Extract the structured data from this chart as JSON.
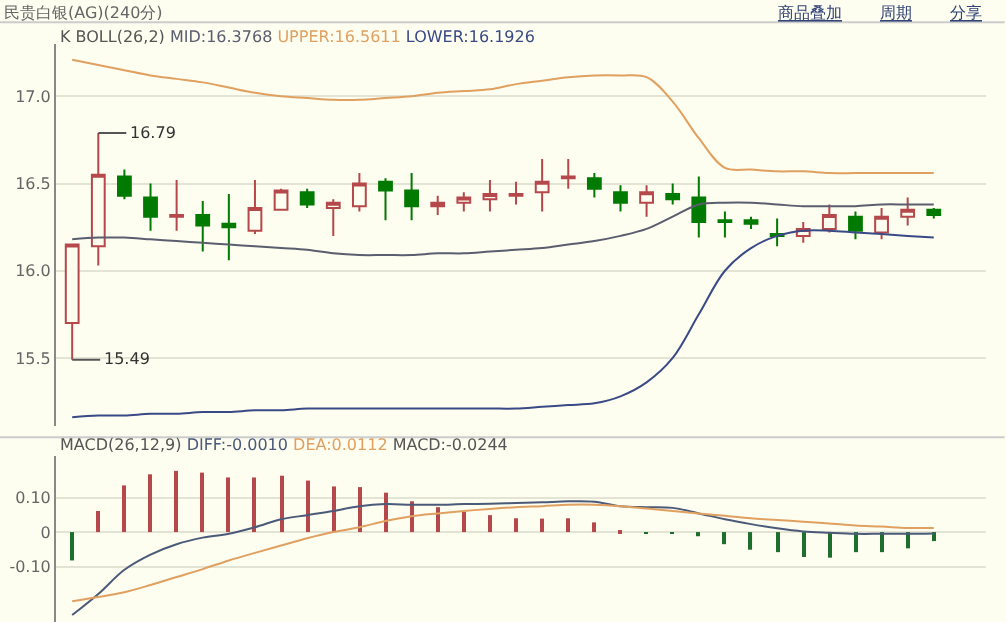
{
  "chart_data": [
    {
      "type": "candlestick",
      "title": "民贵白银(AG)(240分)",
      "subtitle": "K BOLL(26,2)",
      "annotations": [
        "16.79",
        "15.49",
        "商品叠加",
        "周期",
        "分享"
      ],
      "categories": [
        null,
        null,
        null,
        null,
        null,
        null,
        null,
        null,
        null,
        null,
        null,
        null,
        null,
        null,
        null,
        null,
        null,
        null,
        null,
        null,
        null,
        null,
        null,
        null,
        null,
        null,
        null,
        null,
        null,
        null,
        null,
        null,
        null,
        null
      ],
      "ohlc": [
        [
          15.7,
          16.15,
          15.49,
          16.15
        ],
        [
          16.14,
          16.79,
          16.03,
          16.55
        ],
        [
          16.54,
          16.58,
          16.41,
          16.43
        ],
        [
          16.42,
          16.5,
          16.23,
          16.31
        ],
        [
          16.31,
          16.52,
          16.23,
          16.32
        ],
        [
          16.32,
          16.4,
          16.11,
          16.26
        ],
        [
          16.27,
          16.44,
          16.06,
          16.25
        ],
        [
          16.23,
          16.52,
          16.21,
          16.36
        ],
        [
          16.35,
          16.47,
          16.35,
          16.46
        ],
        [
          16.45,
          16.47,
          16.36,
          16.38
        ],
        [
          16.36,
          16.41,
          16.2,
          16.39
        ],
        [
          16.37,
          16.56,
          16.34,
          16.5
        ],
        [
          16.51,
          16.53,
          16.29,
          16.46
        ],
        [
          16.46,
          16.56,
          16.29,
          16.37
        ],
        [
          16.37,
          16.43,
          16.32,
          16.39
        ],
        [
          16.39,
          16.45,
          16.34,
          16.42
        ],
        [
          16.41,
          16.52,
          16.34,
          16.44
        ],
        [
          16.43,
          16.51,
          16.38,
          16.44
        ],
        [
          16.45,
          16.64,
          16.34,
          16.51
        ],
        [
          16.53,
          16.64,
          16.47,
          16.54
        ],
        [
          16.53,
          16.56,
          16.42,
          16.47
        ],
        [
          16.45,
          16.49,
          16.34,
          16.39
        ],
        [
          16.39,
          16.49,
          16.31,
          16.45
        ],
        [
          16.44,
          16.5,
          16.38,
          16.41
        ],
        [
          16.42,
          16.54,
          16.19,
          16.28
        ],
        [
          16.29,
          16.34,
          16.19,
          16.28
        ],
        [
          16.29,
          16.31,
          16.24,
          16.27
        ],
        [
          16.21,
          16.3,
          16.14,
          16.2
        ],
        [
          16.2,
          16.28,
          16.16,
          16.24
        ],
        [
          16.24,
          16.38,
          16.22,
          16.32
        ],
        [
          16.31,
          16.34,
          16.18,
          16.23
        ],
        [
          16.22,
          16.36,
          16.18,
          16.31
        ],
        [
          16.31,
          16.42,
          16.26,
          16.35
        ],
        [
          16.35,
          16.36,
          16.3,
          16.32
        ]
      ],
      "series": [
        {
          "name": "MID:16.3768",
          "type": "line",
          "color": "#5a5e6e",
          "values": [
            16.18,
            16.19,
            16.19,
            16.18,
            16.17,
            16.16,
            16.15,
            16.14,
            16.13,
            16.12,
            16.1,
            16.09,
            16.09,
            16.09,
            16.1,
            16.1,
            16.11,
            16.12,
            16.13,
            16.15,
            16.17,
            16.2,
            16.24,
            16.31,
            16.38,
            16.39,
            16.39,
            16.38,
            16.37,
            16.37,
            16.37,
            16.38,
            16.38,
            16.38
          ]
        },
        {
          "name": "UPPER:16.5611",
          "type": "line",
          "color": "#e0a060",
          "values": [
            17.21,
            17.18,
            17.15,
            17.12,
            17.1,
            17.08,
            17.05,
            17.02,
            17.0,
            16.99,
            16.98,
            16.98,
            16.99,
            17.0,
            17.02,
            17.03,
            17.04,
            17.07,
            17.09,
            17.11,
            17.12,
            17.12,
            17.11,
            16.97,
            16.76,
            16.59,
            16.58,
            16.57,
            16.57,
            16.56,
            16.56,
            16.56,
            16.56,
            16.56
          ]
        },
        {
          "name": "LOWER:16.1926",
          "type": "line",
          "color": "#3a4a86",
          "values": [
            15.16,
            15.17,
            15.17,
            15.18,
            15.18,
            15.19,
            15.19,
            15.2,
            15.2,
            15.21,
            15.21,
            15.21,
            15.21,
            15.21,
            15.21,
            15.21,
            15.21,
            15.21,
            15.22,
            15.23,
            15.24,
            15.28,
            15.36,
            15.5,
            15.75,
            16.0,
            16.13,
            16.2,
            16.23,
            16.23,
            16.22,
            16.21,
            16.2,
            16.19
          ]
        }
      ],
      "ylim": [
        15.11,
        17.3
      ],
      "yticks": [
        {
          "value": 15.5,
          "label": "15.5"
        },
        {
          "value": 16.0,
          "label": "16.0"
        },
        {
          "value": 16.5,
          "label": "16.5"
        },
        {
          "value": 17.0,
          "label": "17.0"
        }
      ],
      "grid": "y",
      "tick_labels": "y"
    },
    {
      "type": "bar",
      "subtitle": "MACD(26,12,9)",
      "annotations": [
        "MACD:-0.0244"
      ],
      "categories": [
        null,
        null,
        null,
        null,
        null,
        null,
        null,
        null,
        null,
        null,
        null,
        null,
        null,
        null,
        null,
        null,
        null,
        null,
        null,
        null,
        null,
        null,
        null,
        null,
        null,
        null,
        null,
        null,
        null,
        null,
        null,
        null,
        null,
        null
      ],
      "series": [
        {
          "name": "DIFF:-0.0010",
          "type": "line",
          "color": "#4a5a78",
          "values": [
            -0.24,
            -0.179,
            -0.109,
            -0.065,
            -0.035,
            -0.016,
            -0.005,
            0.014,
            0.037,
            0.049,
            0.061,
            0.075,
            0.081,
            0.079,
            0.079,
            0.081,
            0.082,
            0.084,
            0.086,
            0.089,
            0.088,
            0.075,
            0.072,
            0.07,
            0.054,
            0.037,
            0.023,
            0.011,
            0.002,
            -0.002,
            -0.005,
            -0.005,
            -0.005,
            -0.004
          ]
        },
        {
          "name": "DEA:0.0112",
          "type": "line",
          "color": "#e0a060",
          "values": [
            -0.2,
            -0.188,
            -0.174,
            -0.153,
            -0.13,
            -0.107,
            -0.082,
            -0.06,
            -0.039,
            -0.018,
            0.0,
            0.014,
            0.032,
            0.046,
            0.054,
            0.061,
            0.067,
            0.072,
            0.075,
            0.079,
            0.079,
            0.075,
            0.068,
            0.061,
            0.054,
            0.047,
            0.04,
            0.035,
            0.03,
            0.025,
            0.019,
            0.016,
            0.012,
            0.012
          ]
        },
        {
          "type": "bar",
          "colors": [
            "#1e6e2e",
            "#b5484a",
            "#b5484a",
            "#b5484a",
            "#b5484a",
            "#b5484a",
            "#b5484a",
            "#b5484a",
            "#b5484a",
            "#b5484a",
            "#b5484a",
            "#b5484a",
            "#b5484a",
            "#b5484a",
            "#b5484a",
            "#b5484a",
            "#b5484a",
            "#b5484a",
            "#b5484a",
            "#b5484a",
            "#b5484a",
            "#b5484a",
            "#1e6e2e",
            "#1e6e2e",
            "#1e6e2e",
            "#1e6e2e",
            "#1e6e2e",
            "#1e6e2e",
            "#1e6e2e",
            "#1e6e2e",
            "#1e6e2e",
            "#1e6e2e",
            "#1e6e2e",
            "#1e6e2e"
          ],
          "values": [
            -0.082,
            0.061,
            0.135,
            0.167,
            0.177,
            0.172,
            0.158,
            0.158,
            0.163,
            0.149,
            0.132,
            0.13,
            0.114,
            0.089,
            0.072,
            0.058,
            0.049,
            0.04,
            0.039,
            0.04,
            0.028,
            0.004,
            -0.004,
            -0.005,
            -0.012,
            -0.035,
            -0.051,
            -0.058,
            -0.072,
            -0.074,
            -0.058,
            -0.058,
            -0.047,
            -0.026
          ]
        }
      ],
      "ylim": [
        -0.26,
        0.22
      ],
      "yticks": [
        {
          "value": -0.1,
          "label": "-0.10"
        },
        {
          "value": 0,
          "label": "0"
        },
        {
          "value": 0.1,
          "label": "0.10"
        }
      ],
      "grid": "y",
      "tick_labels": "y"
    }
  ]
}
